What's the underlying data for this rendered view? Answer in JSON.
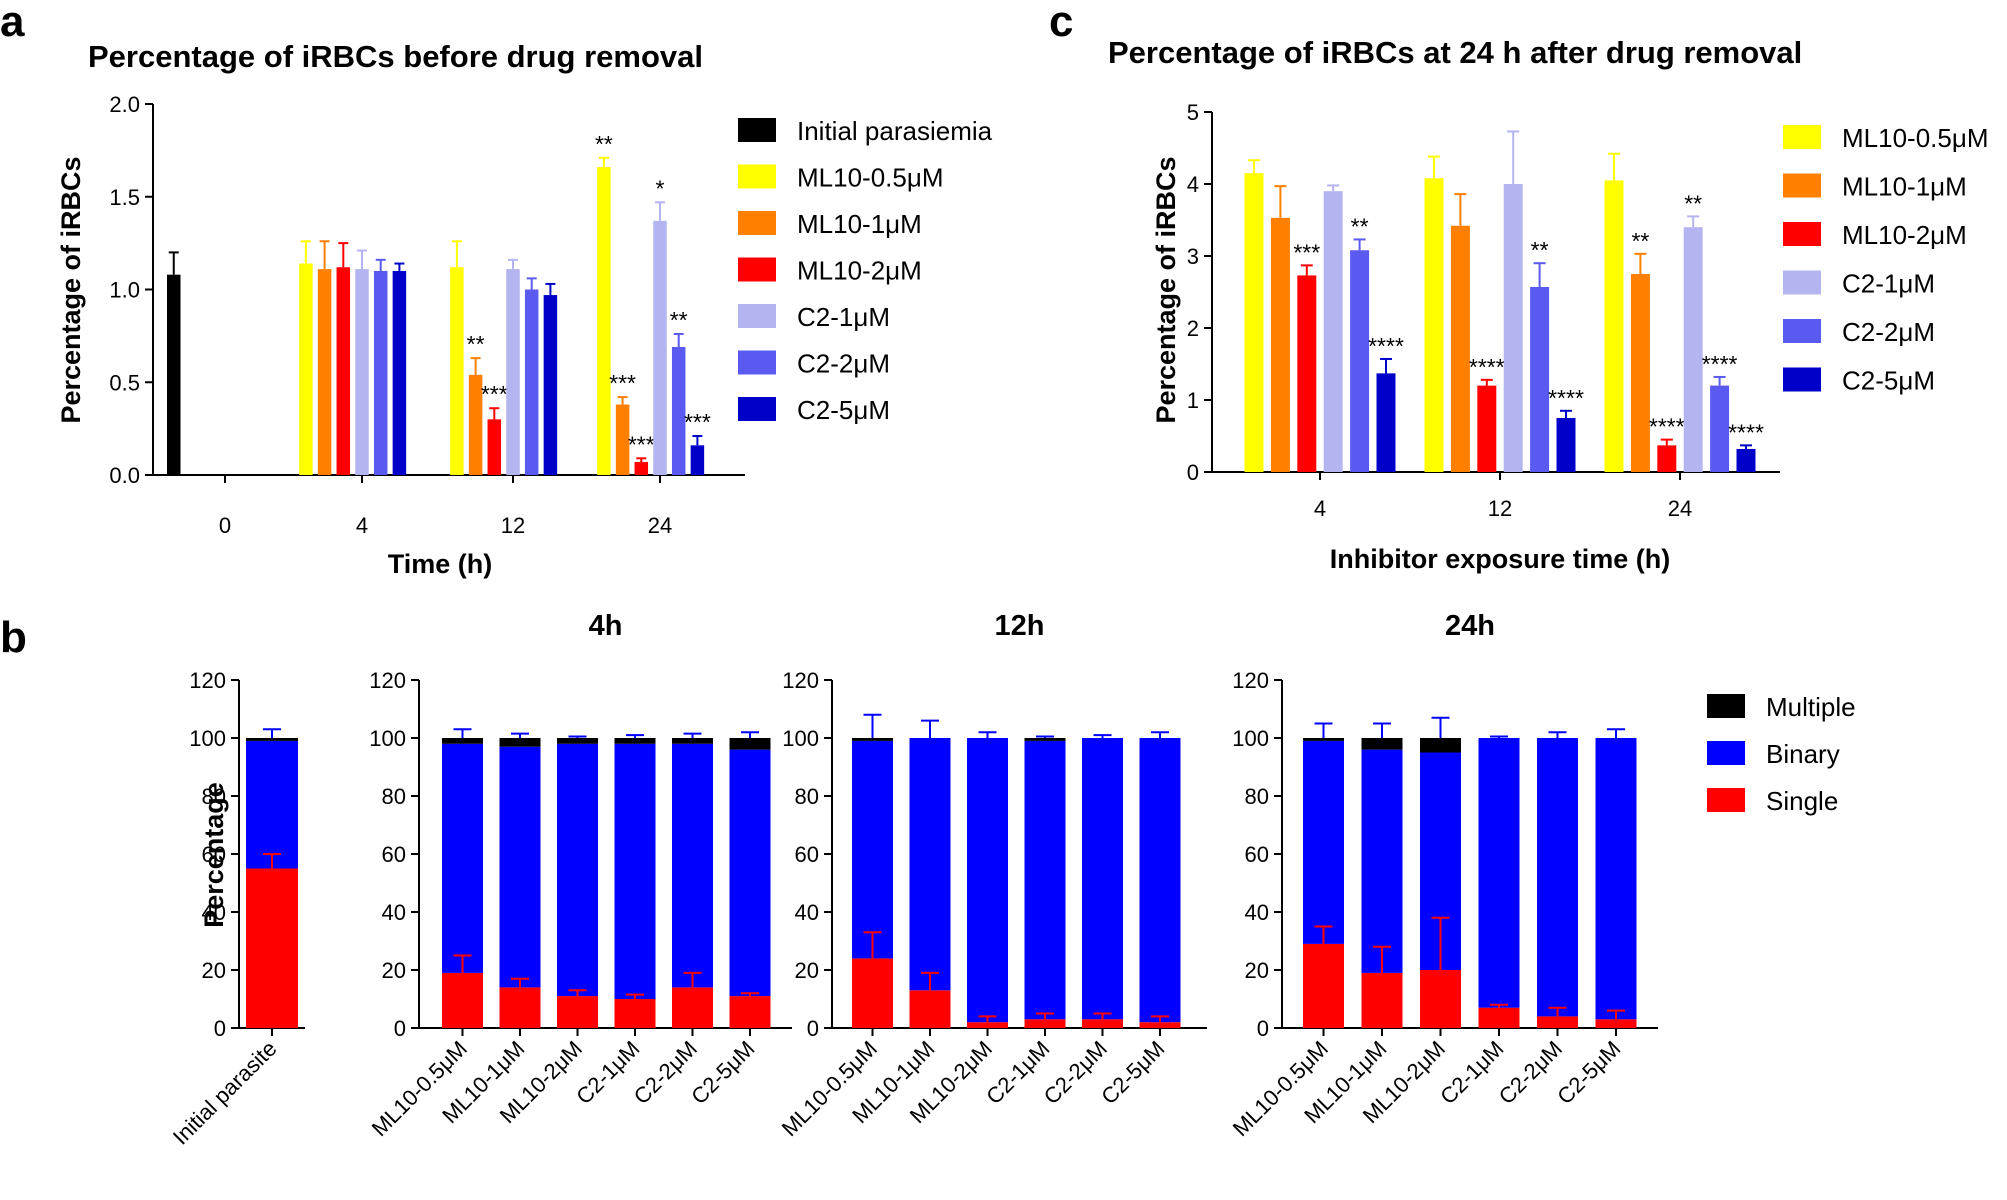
{
  "figure": {
    "panel_labels": {
      "a": "a",
      "b": "b",
      "c": "c"
    },
    "subplot_titles": {
      "h4": "4h",
      "h12": "12h",
      "h24": "24h"
    }
  },
  "colors": {
    "Initial parasiemia": "#000000",
    "ML10-0.5μM": "#ffff00",
    "ML10-1μM": "#ff8000",
    "ML10-2μM": "#ff0000",
    "C2-1μM": "#b4b4f0",
    "C2-2μM": "#5a5af0",
    "C2-5μM": "#0000c8",
    "Multiple": "#000000",
    "Binary": "#0000ff",
    "Single": "#ff0000",
    "error_stack": "#0000ff",
    "error_single": "#ff0000"
  },
  "chart_data": [
    {
      "id": "a",
      "type": "bar",
      "title": "Percentage of iRBCs before drug removal",
      "xlabel": "Time (h)",
      "ylabel": "Percentage of iRBCs",
      "ylim": [
        0,
        2.0
      ],
      "yticks": [
        0.0,
        0.5,
        1.0,
        1.5,
        2.0
      ],
      "ytick_labels": [
        "0.0",
        "0.5",
        "1.0",
        "1.5",
        "2.0"
      ],
      "categories": [
        "0",
        "4",
        "12",
        "24"
      ],
      "legend_position": "right",
      "series": [
        {
          "name": "Initial parasiemia",
          "values": [
            1.08,
            null,
            null,
            null
          ],
          "errors": [
            0.12,
            null,
            null,
            null
          ],
          "sig": [
            "",
            "",
            "",
            ""
          ]
        },
        {
          "name": "ML10-0.5μM",
          "values": [
            null,
            1.14,
            1.12,
            1.66
          ],
          "errors": [
            null,
            0.12,
            0.14,
            0.05
          ],
          "sig": [
            "",
            "",
            "",
            "**"
          ]
        },
        {
          "name": "ML10-1μM",
          "values": [
            null,
            1.11,
            0.54,
            0.38
          ],
          "errors": [
            null,
            0.15,
            0.09,
            0.04
          ],
          "sig": [
            "",
            "",
            "**",
            "***"
          ]
        },
        {
          "name": "ML10-2μM",
          "values": [
            null,
            1.12,
            0.3,
            0.07
          ],
          "errors": [
            null,
            0.13,
            0.06,
            0.02
          ],
          "sig": [
            "",
            "",
            "***",
            "***"
          ]
        },
        {
          "name": "C2-1μM",
          "values": [
            null,
            1.11,
            1.11,
            1.37
          ],
          "errors": [
            null,
            0.1,
            0.05,
            0.1
          ],
          "sig": [
            "",
            "",
            "",
            "*"
          ]
        },
        {
          "name": "C2-2μM",
          "values": [
            null,
            1.1,
            1.0,
            0.69
          ],
          "errors": [
            null,
            0.06,
            0.06,
            0.07
          ],
          "sig": [
            "",
            "",
            "",
            "**"
          ]
        },
        {
          "name": "C2-5μM",
          "values": [
            null,
            1.1,
            0.97,
            0.16
          ],
          "errors": [
            null,
            0.04,
            0.06,
            0.05
          ],
          "sig": [
            "",
            "",
            "",
            "***"
          ]
        }
      ]
    },
    {
      "id": "c",
      "type": "bar",
      "title": "Percentage of iRBCs at 24 h after drug removal",
      "xlabel": "Inhibitor exposure time (h)",
      "ylabel": "Percentage of iRBCs",
      "ylim": [
        0,
        5
      ],
      "yticks": [
        0,
        1,
        2,
        3,
        4,
        5
      ],
      "ytick_labels": [
        "0",
        "1",
        "2",
        "3",
        "4",
        "5"
      ],
      "categories": [
        "4",
        "12",
        "24"
      ],
      "legend_position": "right",
      "series": [
        {
          "name": "ML10-0.5μM",
          "values": [
            4.15,
            4.08,
            4.05
          ],
          "errors": [
            0.18,
            0.3,
            0.37
          ],
          "sig": [
            "",
            "",
            ""
          ]
        },
        {
          "name": "ML10-1μM",
          "values": [
            3.53,
            3.42,
            2.75
          ],
          "errors": [
            0.44,
            0.44,
            0.28
          ],
          "sig": [
            "",
            "",
            "**"
          ]
        },
        {
          "name": "ML10-2μM",
          "values": [
            2.73,
            1.2,
            0.37
          ],
          "errors": [
            0.14,
            0.08,
            0.08
          ],
          "sig": [
            "***",
            "****",
            "****"
          ]
        },
        {
          "name": "C2-1μM",
          "values": [
            3.9,
            4.0,
            3.4
          ],
          "errors": [
            0.08,
            0.73,
            0.15
          ],
          "sig": [
            "",
            "",
            "**"
          ]
        },
        {
          "name": "C2-2μM",
          "values": [
            3.08,
            2.57,
            1.2
          ],
          "errors": [
            0.15,
            0.33,
            0.12
          ],
          "sig": [
            "**",
            "**",
            "****"
          ]
        },
        {
          "name": "C2-5μM",
          "values": [
            1.37,
            0.75,
            0.32
          ],
          "errors": [
            0.2,
            0.1,
            0.05
          ],
          "sig": [
            "****",
            "****",
            "****"
          ]
        }
      ]
    },
    {
      "id": "b",
      "type": "bar",
      "stacked": true,
      "ylabel": "Percentage",
      "ylim": [
        0,
        120
      ],
      "yticks": [
        0,
        20,
        40,
        60,
        80,
        100,
        120
      ],
      "ytick_labels": [
        "0",
        "20",
        "40",
        "60",
        "80",
        "100",
        "120"
      ],
      "stack_order": [
        "Single",
        "Binary",
        "Multiple"
      ],
      "legend_order": [
        "Multiple",
        "Binary",
        "Single"
      ],
      "legend_position": "right",
      "groups": [
        {
          "label": "",
          "categories": [
            "Initial parasite"
          ],
          "single": [
            55
          ],
          "single_err": [
            5
          ],
          "binary": [
            44
          ],
          "multiple": [
            1
          ],
          "stack_err": [
            3
          ]
        },
        {
          "label": "4h",
          "categories": [
            "ML10-0.5μM",
            "ML10-1μM",
            "ML10-2μM",
            "C2-1μM",
            "C2-2μM",
            "C2-5μM"
          ],
          "single": [
            19,
            14,
            11,
            10,
            14,
            11
          ],
          "single_err": [
            6,
            3,
            2,
            1.5,
            5,
            1
          ],
          "binary": [
            79,
            83,
            87,
            88,
            84,
            85
          ],
          "multiple": [
            2,
            3,
            2,
            2,
            2,
            4
          ],
          "stack_err": [
            3,
            1.5,
            0.5,
            1,
            1.5,
            2
          ]
        },
        {
          "label": "12h",
          "categories": [
            "ML10-0.5μM",
            "ML10-1μM",
            "ML10-2μM",
            "C2-1μM",
            "C2-2μM",
            "C2-5μM"
          ],
          "single": [
            24,
            13,
            2,
            3,
            3,
            2
          ],
          "single_err": [
            9,
            6,
            2,
            2,
            2,
            2
          ],
          "binary": [
            75,
            87,
            98,
            96,
            97,
            98
          ],
          "multiple": [
            1,
            0,
            0,
            1,
            0,
            0
          ],
          "stack_err": [
            8,
            6,
            2,
            0.5,
            1,
            2
          ]
        },
        {
          "label": "24h",
          "categories": [
            "ML10-0.5μM",
            "ML10-1μM",
            "ML10-2μM",
            "C2-1μM",
            "C2-2μM",
            "C2-5μM"
          ],
          "single": [
            29,
            19,
            20,
            7,
            4,
            3
          ],
          "single_err": [
            6,
            9,
            18,
            1,
            3,
            3
          ],
          "binary": [
            70,
            77,
            75,
            93,
            96,
            97
          ],
          "multiple": [
            1,
            4,
            5,
            0,
            0,
            0
          ],
          "stack_err": [
            5,
            5,
            7,
            0.5,
            2,
            3
          ]
        }
      ]
    }
  ]
}
